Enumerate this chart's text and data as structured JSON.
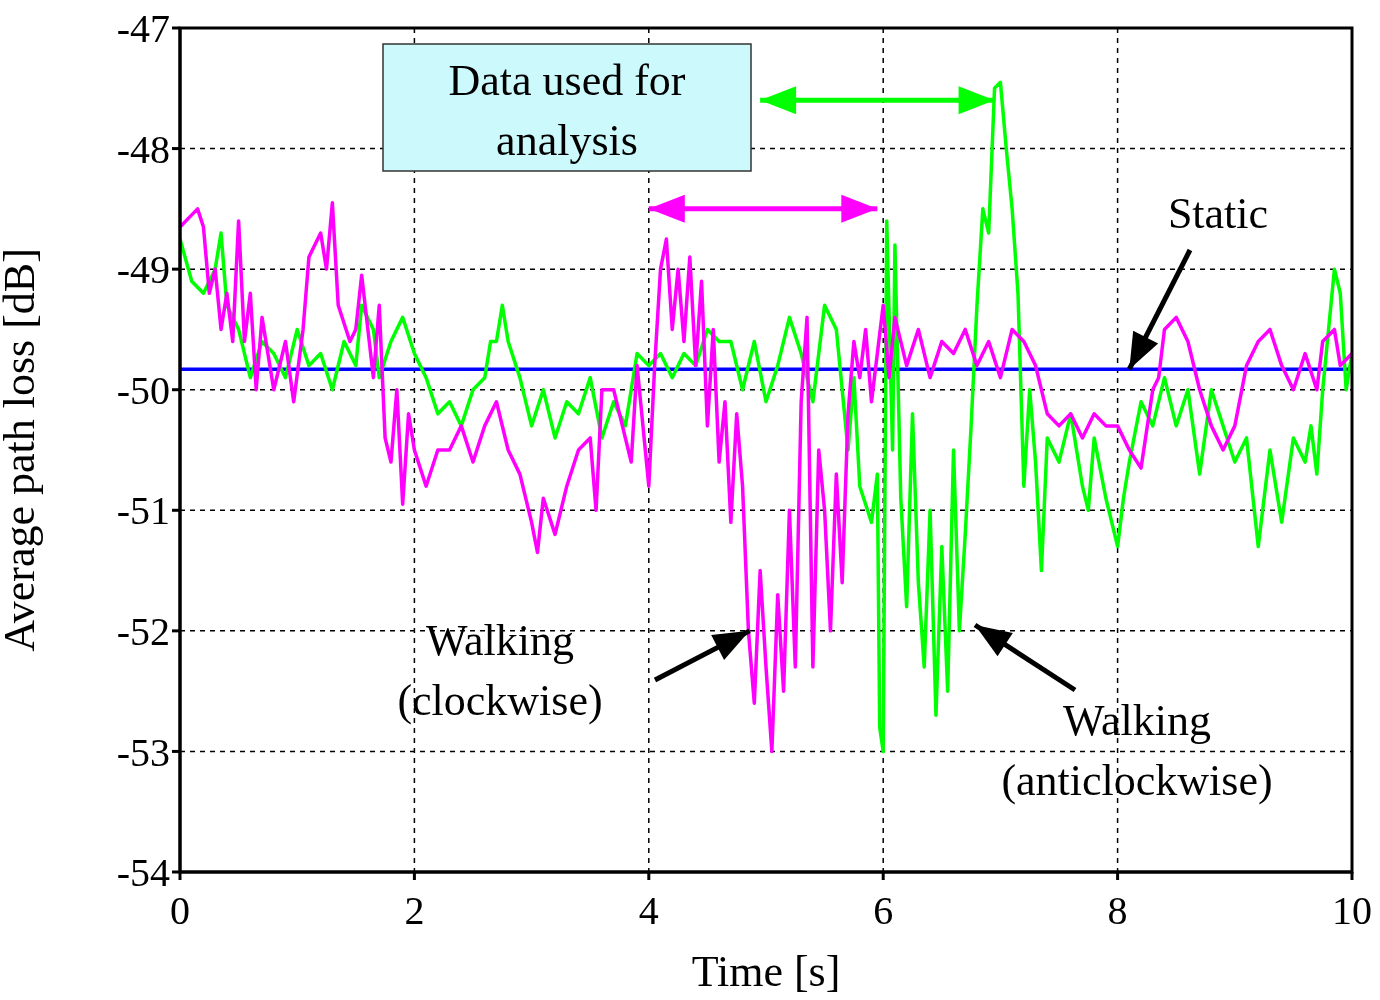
{
  "chart_data": {
    "type": "line",
    "xlabel": "Time [s]",
    "ylabel": "Average path loss [dB]",
    "xlim": [
      0,
      10
    ],
    "xticks": [
      0,
      2,
      4,
      6,
      8,
      10
    ],
    "ylim": [
      -54,
      -47
    ],
    "yticks": [
      -54,
      -53,
      -52,
      -51,
      -50,
      -49,
      -48,
      -47
    ],
    "grid": true,
    "marker": "none",
    "line_style": "solid",
    "series": [
      {
        "color": "#0000ff",
        "x": [
          0,
          2,
          4,
          6,
          8,
          10
        ],
        "values": [
          -49.83,
          -49.83,
          -49.83,
          -49.83,
          -49.83,
          -49.83
        ]
      },
      {
        "color": "#00ff00",
        "x": [
          0,
          0.1,
          0.2,
          0.3,
          0.35,
          0.4,
          0.5,
          0.6,
          0.7,
          0.8,
          0.9,
          1.0,
          1.1,
          1.2,
          1.3,
          1.4,
          1.5,
          1.55,
          1.65,
          1.7,
          1.8,
          1.9,
          2.0,
          2.1,
          2.2,
          2.3,
          2.4,
          2.5,
          2.6,
          2.65,
          2.7,
          2.75,
          2.8,
          2.9,
          3.0,
          3.1,
          3.2,
          3.3,
          3.4,
          3.5,
          3.6,
          3.7,
          3.8,
          3.9,
          4.0,
          4.1,
          4.2,
          4.3,
          4.4,
          4.5,
          4.6,
          4.7,
          4.8,
          4.9,
          5.0,
          5.1,
          5.2,
          5.3,
          5.4,
          5.5,
          5.6,
          5.7,
          5.75,
          5.8,
          5.9,
          5.95,
          5.97,
          6.0,
          6.03,
          6.08,
          6.1,
          6.15,
          6.2,
          6.25,
          6.3,
          6.35,
          6.4,
          6.45,
          6.5,
          6.55,
          6.6,
          6.65,
          6.7,
          6.75,
          6.8,
          6.85,
          6.9,
          6.95,
          7.0,
          7.05,
          7.1,
          7.15,
          7.2,
          7.25,
          7.3,
          7.35,
          7.4,
          7.5,
          7.6,
          7.7,
          7.75,
          7.8,
          7.9,
          8.0,
          8.05,
          8.1,
          8.2,
          8.3,
          8.4,
          8.5,
          8.6,
          8.7,
          8.8,
          8.9,
          9.0,
          9.1,
          9.2,
          9.3,
          9.4,
          9.5,
          9.6,
          9.65,
          9.7,
          9.75,
          9.8,
          9.85,
          9.9,
          9.95,
          10
        ],
        "values": [
          -48.75,
          -49.1,
          -49.2,
          -49.0,
          -48.7,
          -49.3,
          -49.5,
          -49.9,
          -49.6,
          -49.7,
          -49.9,
          -49.5,
          -49.8,
          -49.7,
          -50.0,
          -49.6,
          -49.8,
          -49.3,
          -49.5,
          -49.9,
          -49.6,
          -49.4,
          -49.7,
          -49.9,
          -50.2,
          -50.1,
          -50.3,
          -50.0,
          -49.9,
          -49.6,
          -49.6,
          -49.3,
          -49.6,
          -49.9,
          -50.3,
          -50.0,
          -50.4,
          -50.1,
          -50.2,
          -49.9,
          -50.4,
          -50.1,
          -50.3,
          -49.7,
          -49.8,
          -49.7,
          -49.9,
          -49.7,
          -49.8,
          -49.5,
          -49.6,
          -49.6,
          -50.0,
          -49.6,
          -50.1,
          -49.8,
          -49.4,
          -49.7,
          -50.1,
          -49.3,
          -49.5,
          -50.5,
          -49.9,
          -50.8,
          -51.1,
          -50.7,
          -52.8,
          -53.0,
          -48.6,
          -50.5,
          -48.8,
          -50.9,
          -51.8,
          -50.2,
          -51.6,
          -52.3,
          -51.0,
          -52.7,
          -51.3,
          -52.5,
          -50.5,
          -52.0,
          -51.2,
          -50.3,
          -49.3,
          -48.5,
          -48.7,
          -47.5,
          -47.45,
          -48.0,
          -48.5,
          -49.2,
          -50.8,
          -50.0,
          -50.6,
          -51.5,
          -50.4,
          -50.6,
          -50.2,
          -50.8,
          -51.0,
          -50.4,
          -50.9,
          -51.3,
          -50.9,
          -50.6,
          -50.1,
          -50.3,
          -49.9,
          -50.3,
          -50.0,
          -50.7,
          -50.0,
          -50.3,
          -50.6,
          -50.4,
          -51.3,
          -50.5,
          -51.1,
          -50.4,
          -50.6,
          -50.3,
          -50.7,
          -50.0,
          -49.5,
          -49.0,
          -49.2,
          -50.0,
          -49.7
        ]
      },
      {
        "color": "#ff00ff",
        "x": [
          0,
          0.1,
          0.15,
          0.2,
          0.25,
          0.3,
          0.35,
          0.4,
          0.45,
          0.5,
          0.55,
          0.6,
          0.65,
          0.7,
          0.8,
          0.9,
          0.97,
          1.05,
          1.1,
          1.2,
          1.25,
          1.3,
          1.35,
          1.45,
          1.5,
          1.55,
          1.65,
          1.7,
          1.75,
          1.8,
          1.85,
          1.9,
          1.95,
          2.0,
          2.1,
          2.2,
          2.3,
          2.4,
          2.5,
          2.6,
          2.7,
          2.8,
          2.9,
          3.0,
          3.05,
          3.1,
          3.2,
          3.3,
          3.4,
          3.5,
          3.55,
          3.6,
          3.7,
          3.75,
          3.85,
          3.9,
          3.95,
          4.0,
          4.05,
          4.1,
          4.15,
          4.2,
          4.25,
          4.3,
          4.35,
          4.4,
          4.45,
          4.5,
          4.55,
          4.6,
          4.65,
          4.7,
          4.75,
          4.8,
          4.85,
          4.9,
          4.95,
          5.0,
          5.05,
          5.1,
          5.15,
          5.2,
          5.25,
          5.3,
          5.35,
          5.4,
          5.45,
          5.5,
          5.55,
          5.6,
          5.65,
          5.7,
          5.75,
          5.8,
          5.85,
          5.9,
          5.95,
          6.0,
          6.05,
          6.1,
          6.2,
          6.3,
          6.4,
          6.5,
          6.6,
          6.7,
          6.8,
          6.9,
          7.0,
          7.1,
          7.2,
          7.3,
          7.4,
          7.5,
          7.6,
          7.7,
          7.8,
          7.9,
          8.0,
          8.1,
          8.2,
          8.3,
          8.35,
          8.4,
          8.5,
          8.6,
          8.7,
          8.8,
          8.9,
          9.0,
          9.1,
          9.2,
          9.3,
          9.4,
          9.5,
          9.6,
          9.7,
          9.75,
          9.85,
          9.9,
          10
        ],
        "values": [
          -48.65,
          -48.55,
          -48.5,
          -48.65,
          -49.2,
          -49.0,
          -49.5,
          -49.2,
          -49.6,
          -48.6,
          -49.6,
          -49.2,
          -50.0,
          -49.4,
          -50.0,
          -49.6,
          -50.1,
          -49.5,
          -48.9,
          -48.7,
          -49.0,
          -48.45,
          -49.3,
          -49.6,
          -49.5,
          -49.05,
          -49.9,
          -49.3,
          -50.4,
          -50.6,
          -50.0,
          -50.95,
          -50.2,
          -50.5,
          -50.8,
          -50.5,
          -50.5,
          -50.3,
          -50.6,
          -50.3,
          -50.1,
          -50.5,
          -50.7,
          -51.1,
          -51.35,
          -50.9,
          -51.2,
          -50.8,
          -50.5,
          -50.4,
          -51.0,
          -50.0,
          -50.0,
          -50.2,
          -50.6,
          -49.8,
          -50.3,
          -50.8,
          -49.8,
          -49.0,
          -48.75,
          -49.5,
          -49.0,
          -49.6,
          -48.9,
          -49.8,
          -49.1,
          -50.3,
          -49.5,
          -50.6,
          -50.1,
          -51.1,
          -50.2,
          -50.8,
          -52.0,
          -52.6,
          -51.5,
          -52.3,
          -53.0,
          -51.7,
          -52.5,
          -51.0,
          -52.3,
          -50.1,
          -49.4,
          -52.3,
          -50.5,
          -51.0,
          -52.0,
          -50.7,
          -51.6,
          -50.2,
          -49.6,
          -49.9,
          -49.5,
          -50.1,
          -49.7,
          -49.3,
          -49.9,
          -49.4,
          -49.8,
          -49.5,
          -49.9,
          -49.6,
          -49.7,
          -49.5,
          -49.8,
          -49.6,
          -49.9,
          -49.5,
          -49.6,
          -49.8,
          -50.2,
          -50.3,
          -50.2,
          -50.4,
          -50.2,
          -50.3,
          -50.3,
          -50.5,
          -50.65,
          -50.0,
          -49.9,
          -49.5,
          -49.4,
          -49.6,
          -50.0,
          -50.3,
          -50.5,
          -50.3,
          -49.8,
          -49.6,
          -49.5,
          -49.8,
          -50.0,
          -49.7,
          -50.0,
          -49.6,
          -49.5,
          -49.8,
          -49.7
        ]
      }
    ],
    "annotations": [
      "Data used for\nanalysis",
      {
        "text": "Static",
        "x": 8.1,
        "y": -49.83
      },
      {
        "text": "Walking\n(clockwise)",
        "x": 4.86,
        "y": -52.0
      },
      "Walking\n(anticlockwise)"
    ]
  }
}
